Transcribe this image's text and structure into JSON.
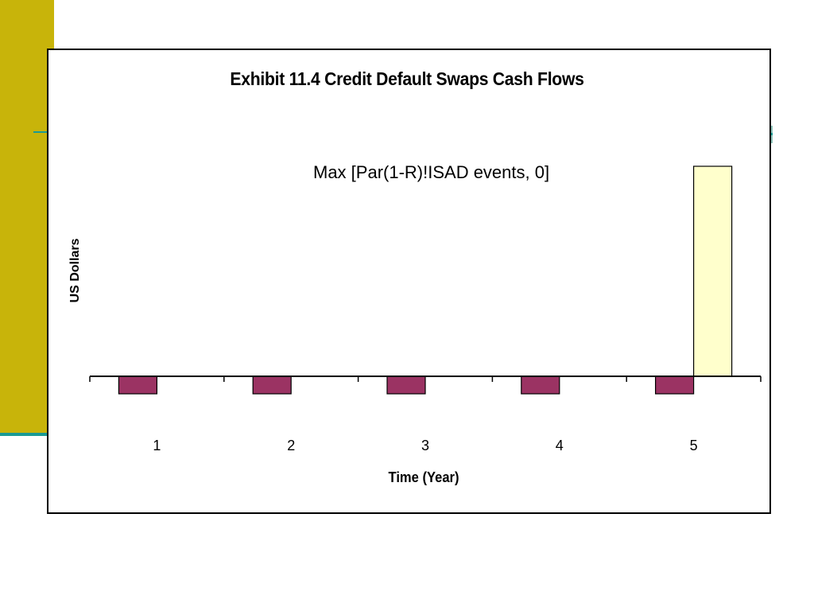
{
  "colors": {
    "left_band": "#c8b40a",
    "accent_teal": "#1a9a94",
    "payment_bar": "#9b3363",
    "payoff_bar": "#ffffcc"
  },
  "chart_data": {
    "type": "bar",
    "title": "Exhibit 11.4 Credit Default Swaps Cash Flows",
    "xlabel": "Time (Year)",
    "ylabel": "US Dollars",
    "annotation": "Max [Par(1-R)!ISAD events, 0]",
    "categories": [
      "1",
      "2",
      "3",
      "4",
      "5"
    ],
    "series": [
      {
        "values": [
          -1,
          -1,
          -1,
          -1,
          -1
        ],
        "color": "#9b3363"
      },
      {
        "values": [
          0,
          0,
          0,
          0,
          12
        ],
        "color": "#ffffcc"
      }
    ],
    "ylim": [
      -1.5,
      13
    ],
    "grid": false,
    "y_tick_labels_shown": false
  }
}
